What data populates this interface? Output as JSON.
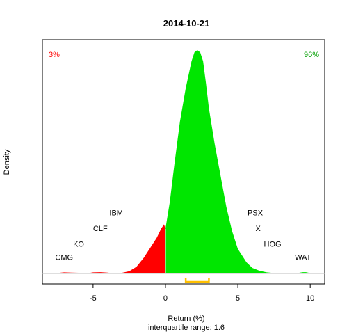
{
  "chart_data": {
    "type": "area",
    "title": "2014-10-21",
    "xlabel": "Return (%)",
    "subtitle": "interquartile range: 1.6",
    "ylabel": "Density",
    "xlim": [
      -8.5,
      11
    ],
    "xticks": [
      -5,
      0,
      5,
      10
    ],
    "negative_share_label": "3%",
    "positive_share_label": "96%",
    "colors": {
      "negative": "#ff0000",
      "positive": "#00e600",
      "iqr": "#ffc000",
      "frame": "#000000"
    },
    "density": {
      "x": [
        -8.0,
        -7.5,
        -7.0,
        -6.5,
        -6.0,
        -5.5,
        -5.0,
        -4.5,
        -4.0,
        -3.5,
        -3.0,
        -2.5,
        -2.0,
        -1.5,
        -1.0,
        -0.6,
        -0.3,
        -0.1,
        0.0,
        0.3,
        0.6,
        1.0,
        1.4,
        1.8,
        2.0,
        2.2,
        2.4,
        2.6,
        2.8,
        3.0,
        3.4,
        3.8,
        4.2,
        4.6,
        5.0,
        5.3,
        5.6,
        6.0,
        6.5,
        7.0,
        7.5,
        8.0,
        8.5,
        9.0,
        9.3,
        9.5,
        9.7,
        9.9,
        10.2,
        10.5
      ],
      "y": [
        0.0,
        0.002,
        0.005,
        0.004,
        0.003,
        0.0,
        0.005,
        0.006,
        0.004,
        0.0,
        0.003,
        0.01,
        0.03,
        0.07,
        0.12,
        0.16,
        0.2,
        0.22,
        0.2,
        0.32,
        0.48,
        0.68,
        0.83,
        0.95,
        0.99,
        1.0,
        0.99,
        0.95,
        0.85,
        0.74,
        0.58,
        0.44,
        0.3,
        0.19,
        0.11,
        0.08,
        0.05,
        0.025,
        0.012,
        0.005,
        0.002,
        0.0,
        0.0,
        0.0,
        0.004,
        0.006,
        0.006,
        0.003,
        0.0,
        0.0
      ],
      "ymax": 1.0
    },
    "iqr_range": [
      1.4,
      3.0
    ],
    "annotations": [
      {
        "label": "CMG",
        "x": -7.0,
        "y": 0.06
      },
      {
        "label": "KO",
        "x": -6.0,
        "y": 0.12
      },
      {
        "label": "CLF",
        "x": -4.5,
        "y": 0.19
      },
      {
        "label": "IBM",
        "x": -3.4,
        "y": 0.26
      },
      {
        "label": "PSX",
        "x": 6.2,
        "y": 0.26
      },
      {
        "label": "X",
        "x": 6.4,
        "y": 0.19
      },
      {
        "label": "HOG",
        "x": 7.4,
        "y": 0.12
      },
      {
        "label": "WAT",
        "x": 9.5,
        "y": 0.06
      }
    ]
  }
}
